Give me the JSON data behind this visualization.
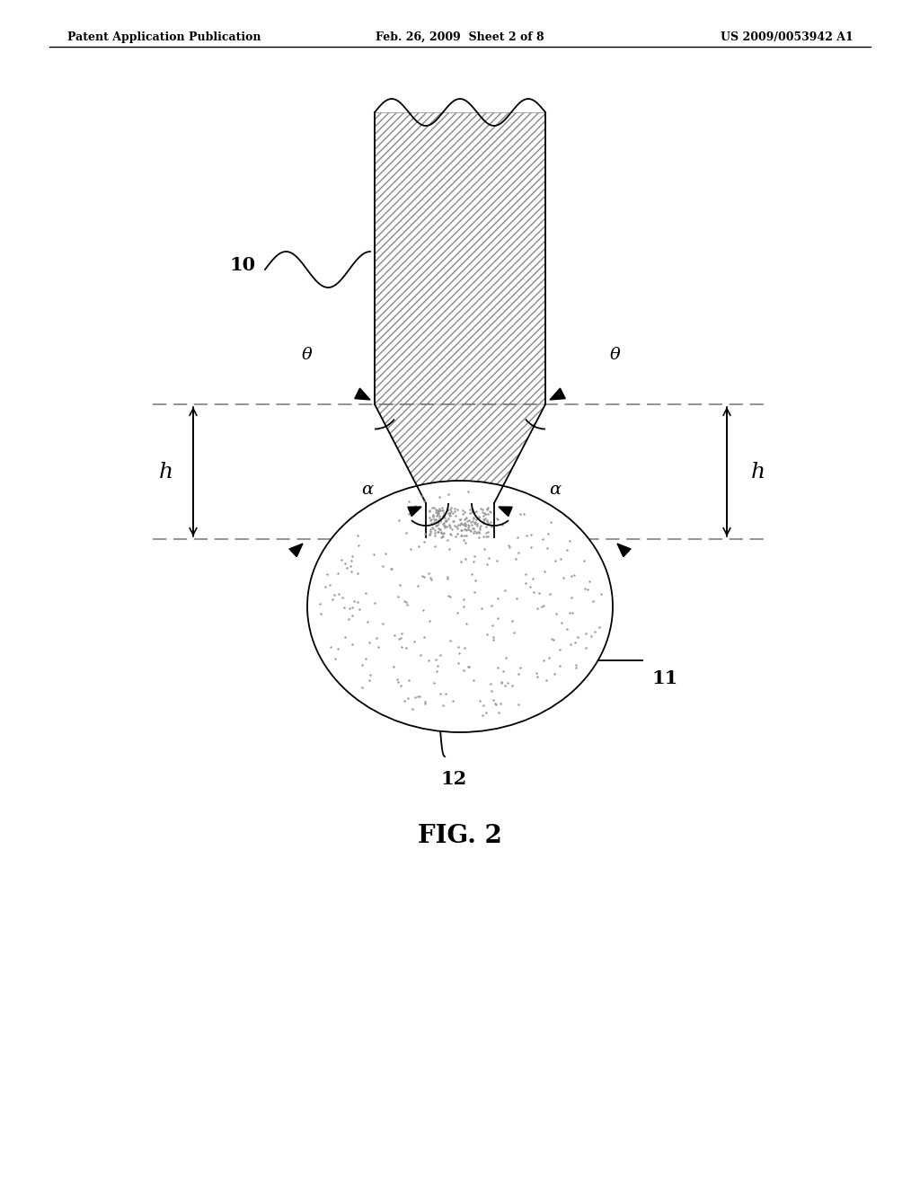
{
  "bg_color": "#ffffff",
  "header_left": "Patent Application Publication",
  "header_mid": "Feb. 26, 2009  Sheet 2 of 8",
  "header_right": "US 2009/0053942 A1",
  "figure_label": "FIG. 2",
  "label_10": "10",
  "label_11": "11",
  "label_12": "12",
  "label_h_left": "h",
  "label_h_right": "h",
  "label_alpha_left": "α",
  "label_alpha_right": "α",
  "label_theta_left": "θ",
  "label_theta_right": "θ"
}
